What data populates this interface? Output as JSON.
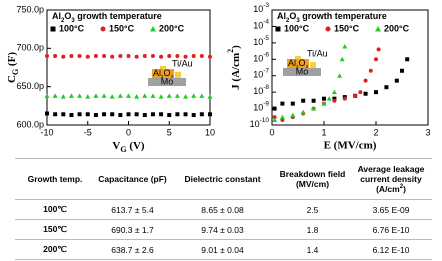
{
  "chart_data": [
    {
      "type": "scatter",
      "ylabel": "CG (F)",
      "xlabel": "VG (V)",
      "legend_title": "Al2O3 growth temperature",
      "x": [
        -10,
        -9,
        -8,
        -7,
        -6,
        -5,
        -4,
        -3,
        -2,
        -1,
        0,
        1,
        2,
        3,
        4,
        5,
        6,
        7,
        8,
        9,
        10
      ],
      "xlim": [
        -10,
        10
      ],
      "xticks": [
        -10,
        -5,
        0,
        5,
        10
      ],
      "ylim": [
        6e-10,
        7.5e-10
      ],
      "yticks": [
        {
          "value": 6e-10,
          "label": "600.0p"
        },
        {
          "value": 6.5e-10,
          "label": "650.0p"
        },
        {
          "value": 7e-10,
          "label": "700.0p"
        },
        {
          "value": 7.5e-10,
          "label": "750.0p"
        }
      ],
      "series": [
        {
          "name": "100°C",
          "color": "#000000",
          "marker": "square",
          "values": [
            6.15e-10,
            6.14e-10,
            6.14e-10,
            6.13e-10,
            6.14e-10,
            6.14e-10,
            6.13e-10,
            6.14e-10,
            6.14e-10,
            6.13e-10,
            6.14e-10,
            6.14e-10,
            6.13e-10,
            6.14e-10,
            6.14e-10,
            6.13e-10,
            6.14e-10,
            6.14e-10,
            6.13e-10,
            6.14e-10,
            6.14e-10
          ]
        },
        {
          "name": "150°C",
          "color": "#e02020",
          "marker": "circle",
          "values": [
            6.9e-10,
            6.9e-10,
            6.89e-10,
            6.9e-10,
            6.9e-10,
            6.89e-10,
            6.9e-10,
            6.9e-10,
            6.89e-10,
            6.9e-10,
            6.9e-10,
            6.89e-10,
            6.9e-10,
            6.9e-10,
            6.89e-10,
            6.9e-10,
            6.9e-10,
            6.89e-10,
            6.9e-10,
            6.9e-10,
            6.89e-10
          ]
        },
        {
          "name": "200°C",
          "color": "#22cc22",
          "marker": "triangle",
          "values": [
            6.38e-10,
            6.38e-10,
            6.37e-10,
            6.38e-10,
            6.38e-10,
            6.37e-10,
            6.38e-10,
            6.38e-10,
            6.37e-10,
            6.38e-10,
            6.38e-10,
            6.37e-10,
            6.38e-10,
            6.38e-10,
            6.37e-10,
            6.38e-10,
            6.38e-10,
            6.37e-10,
            6.38e-10,
            6.38e-10,
            6.37e-10
          ]
        }
      ],
      "inset": {
        "top": "Ti/Au",
        "middle": "Al2O3",
        "bottom": "Mo"
      }
    },
    {
      "type": "scatter",
      "log_y": true,
      "ylabel": "J (A/cm2)",
      "xlabel": "E (MV/cm)",
      "legend_title": "Al2O3 growth temperature",
      "xlim": [
        0,
        3
      ],
      "xticks": [
        0,
        1,
        2,
        3
      ],
      "ylim": [
        1e-10,
        0.001
      ],
      "yticks": [
        {
          "value": 1e-10,
          "label": "10-10"
        },
        {
          "value": 1e-09,
          "label": "10-9"
        },
        {
          "value": 1e-08,
          "label": "10-8"
        },
        {
          "value": 1e-07,
          "label": "10-7"
        },
        {
          "value": 1e-06,
          "label": "10-6"
        },
        {
          "value": 1e-05,
          "label": "10-5"
        },
        {
          "value": 0.0001,
          "label": "10-4"
        },
        {
          "value": 0.001,
          "label": "10-3"
        }
      ],
      "series": [
        {
          "name": "100°C",
          "color": "#000000",
          "marker": "square",
          "x": [
            0.05,
            0.2,
            0.4,
            0.6,
            0.8,
            1.0,
            1.2,
            1.4,
            1.6,
            1.8,
            2.0,
            2.2,
            2.4,
            2.5,
            2.6
          ],
          "values": [
            1e-09,
            2e-09,
            2e-09,
            3e-09,
            3e-09,
            4e-09,
            4e-09,
            5e-09,
            6e-09,
            8e-09,
            1e-08,
            2e-08,
            5e-08,
            2e-07,
            1e-06
          ]
        },
        {
          "name": "150°C",
          "color": "#e02020",
          "marker": "circle",
          "x": [
            0.05,
            0.2,
            0.4,
            0.6,
            0.8,
            1.0,
            1.2,
            1.4,
            1.6,
            1.7,
            1.8,
            1.9,
            2.0,
            2.05
          ],
          "values": [
            3e-10,
            2e-10,
            3e-10,
            5e-10,
            1e-09,
            2e-09,
            3e-09,
            4e-09,
            6e-09,
            1e-08,
            5e-08,
            2e-07,
            1e-06,
            4e-06
          ]
        },
        {
          "name": "200°C",
          "color": "#22cc22",
          "marker": "triangle",
          "x": [
            0.05,
            0.2,
            0.4,
            0.6,
            0.8,
            1.0,
            1.1,
            1.2,
            1.3,
            1.35,
            1.4
          ],
          "values": [
            2e-10,
            3e-10,
            4e-10,
            6e-10,
            1e-09,
            2e-09,
            4e-09,
            1e-08,
            1e-07,
            1e-06,
            6e-06
          ]
        }
      ],
      "inset": {
        "top": "Ti/Au",
        "middle": "Al2O3",
        "bottom": "Mo"
      }
    }
  ],
  "table": {
    "header": [
      "Growth temp.",
      "Capacitance (pF)",
      "Dielectric constant",
      "Breakdown field (MV/cm)",
      "Average leakage current density (A/cm2)"
    ],
    "rows": [
      [
        "100℃",
        "613.7 ± 5.4",
        "8.65 ± 0.08",
        "2.5",
        "3.65 E-09"
      ],
      [
        "150℃",
        "690.3 ± 1.7",
        "9.74 ± 0.03",
        "1.8",
        "6.76 E-10"
      ],
      [
        "200℃",
        "638.7 ± 2.6",
        "9.01 ± 0.04",
        "1.4",
        "6.12 E-10"
      ]
    ]
  }
}
